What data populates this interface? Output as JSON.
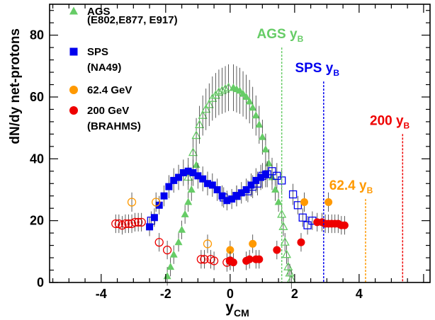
{
  "chart_data": {
    "type": "scatter",
    "xlabel": "y",
    "xlabel_sub": "CM",
    "ylabel": "dN/dy net-protons",
    "xlim": [
      -5.6,
      6.2
    ],
    "ylim": [
      0,
      90
    ],
    "x_ticks": [
      -4,
      -2,
      0,
      2,
      4
    ],
    "y_ticks": [
      0,
      20,
      40,
      60,
      80
    ],
    "grid": false,
    "legend_position": "top-left",
    "series": [
      {
        "name": "AGS",
        "name_sub": "(E802,E877, E917)",
        "color": "#66cc66",
        "marker": "triangle",
        "filled_points": [
          [
            -1.95,
            2
          ],
          [
            -1.85,
            5
          ],
          [
            -1.75,
            9
          ],
          [
            -1.6,
            13
          ],
          [
            -1.5,
            17
          ],
          [
            -1.4,
            22
          ],
          [
            -1.3,
            26
          ],
          [
            -1.2,
            30
          ],
          [
            -1.05,
            38
          ],
          [
            0.1,
            63
          ],
          [
            0.2,
            62.5
          ],
          [
            0.3,
            62
          ],
          [
            0.4,
            61
          ],
          [
            0.5,
            60
          ],
          [
            0.6,
            58.5
          ],
          [
            0.7,
            56.5
          ],
          [
            0.8,
            54
          ],
          [
            0.9,
            51
          ],
          [
            1.0,
            47
          ],
          [
            1.1,
            43
          ],
          [
            1.2,
            38.5
          ],
          [
            1.3,
            34
          ],
          [
            1.4,
            30
          ],
          [
            1.5,
            26
          ]
        ],
        "open_points": [
          [
            -1.3,
            34
          ],
          [
            -1.15,
            42
          ],
          [
            -1.05,
            47.5
          ],
          [
            -0.95,
            51
          ],
          [
            -0.85,
            54
          ],
          [
            -0.75,
            56
          ],
          [
            -0.65,
            57.5
          ],
          [
            -0.55,
            59.5
          ],
          [
            -0.45,
            60.5
          ],
          [
            -0.35,
            61.5
          ],
          [
            -0.25,
            62
          ],
          [
            -0.15,
            62.5
          ],
          [
            -0.05,
            63
          ],
          [
            1.6,
            22
          ],
          [
            1.65,
            18
          ],
          [
            1.7,
            13
          ],
          [
            1.75,
            9
          ],
          [
            1.8,
            5
          ],
          [
            1.85,
            3
          ],
          [
            1.9,
            1
          ]
        ]
      },
      {
        "name": "SPS",
        "name_sub": "(NA49)",
        "color": "#0000ee",
        "marker": "square",
        "filled_points": [
          [
            -2.5,
            18
          ],
          [
            -2.35,
            21
          ],
          [
            -2.2,
            25
          ],
          [
            -2.05,
            28
          ],
          [
            -1.9,
            31
          ],
          [
            -1.75,
            33
          ],
          [
            -1.6,
            34
          ],
          [
            -1.45,
            35.5
          ],
          [
            -1.3,
            36
          ],
          [
            -1.15,
            35.5
          ],
          [
            -1.0,
            34.5
          ],
          [
            -0.85,
            33.5
          ],
          [
            -0.7,
            32
          ],
          [
            -0.55,
            31.5
          ],
          [
            -0.4,
            30
          ],
          [
            -0.25,
            28
          ],
          [
            -0.1,
            26.5
          ],
          [
            0.05,
            27
          ],
          [
            0.2,
            28
          ],
          [
            0.35,
            29
          ],
          [
            0.5,
            30
          ],
          [
            0.65,
            31.5
          ],
          [
            0.8,
            33
          ],
          [
            0.95,
            34
          ],
          [
            1.1,
            35
          ]
        ],
        "open_points": [
          [
            -2.45,
            20
          ],
          [
            -0.2,
            27.5
          ],
          [
            0.2,
            28
          ],
          [
            0.55,
            29.5
          ],
          [
            0.7,
            31
          ],
          [
            0.85,
            32
          ],
          [
            1.0,
            34.5
          ],
          [
            1.15,
            35
          ],
          [
            1.3,
            36
          ],
          [
            1.45,
            34.5
          ],
          [
            1.6,
            33
          ],
          [
            1.95,
            28.5
          ],
          [
            2.1,
            25
          ],
          [
            2.25,
            21
          ],
          [
            2.4,
            18.5
          ],
          [
            2.55,
            20
          ]
        ]
      },
      {
        "name": "62.4 GeV",
        "color": "#ff9900",
        "marker": "circle",
        "filled_points": [
          [
            0.0,
            10.5
          ],
          [
            0.7,
            12.5
          ],
          [
            2.3,
            26
          ],
          [
            3.05,
            26
          ]
        ],
        "open_points": [
          [
            -3.05,
            26
          ],
          [
            -2.3,
            26
          ],
          [
            -0.7,
            12.5
          ]
        ]
      },
      {
        "name": "200 GeV",
        "name_sub": "(BRAHMS)",
        "color": "#ee0000",
        "marker": "circle",
        "filled_points": [
          [
            0.0,
            7
          ],
          [
            0.1,
            6.5
          ],
          [
            0.5,
            7
          ],
          [
            0.6,
            7.5
          ],
          [
            0.8,
            7.5
          ],
          [
            0.9,
            7.5
          ],
          [
            1.45,
            10.5
          ],
          [
            2.2,
            13
          ],
          [
            2.7,
            19.5
          ],
          [
            2.85,
            19.5
          ],
          [
            2.95,
            19
          ],
          [
            3.05,
            19
          ],
          [
            3.15,
            19
          ],
          [
            3.25,
            19
          ],
          [
            3.35,
            19
          ],
          [
            3.45,
            18.5
          ],
          [
            3.55,
            18.5
          ]
        ],
        "open_points": [
          [
            -3.55,
            19
          ],
          [
            -3.45,
            19
          ],
          [
            -3.35,
            18.5
          ],
          [
            -3.25,
            19
          ],
          [
            -3.15,
            19
          ],
          [
            -3.05,
            19
          ],
          [
            -2.95,
            19.5
          ],
          [
            -2.85,
            19.5
          ],
          [
            -2.75,
            19.5
          ],
          [
            -2.2,
            13
          ],
          [
            -1.95,
            10.5
          ],
          [
            -0.9,
            7.5
          ],
          [
            -0.8,
            7.5
          ],
          [
            -0.6,
            7.5
          ],
          [
            -0.5,
            7
          ],
          [
            -0.1,
            6.5
          ],
          [
            0.0,
            7
          ]
        ]
      }
    ],
    "annotations": [
      {
        "text": "AGS y",
        "sub": "B",
        "color": "#66cc66",
        "line_x": 1.6
      },
      {
        "text": "SPS y",
        "sub": "B",
        "color": "#0000ee",
        "line_x": 2.9
      },
      {
        "text": "62.4  y",
        "sub": "B",
        "color": "#ff9900",
        "line_x": 4.2
      },
      {
        "text": "200 y",
        "sub": "B",
        "color": "#ee0000",
        "line_x": 5.35
      }
    ]
  }
}
